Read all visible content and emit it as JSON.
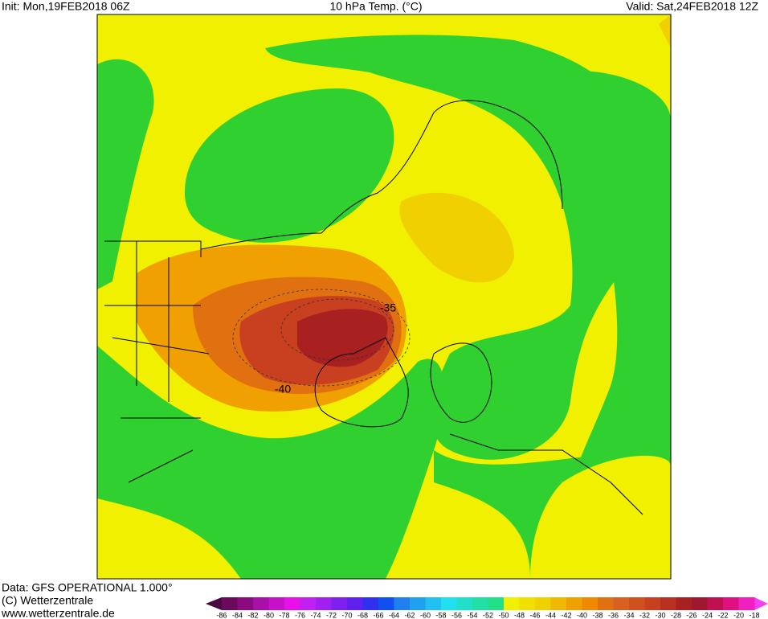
{
  "header": {
    "init": "Init: Mon,19FEB2018 06Z",
    "title": "10 hPa Temp. (°C)",
    "valid": "Valid: Sat,24FEB2018 12Z"
  },
  "footer": {
    "data": "Data: GFS OPERATIONAL 1.000°",
    "copyright": "(C) Wetterzentrale",
    "url": "www.wetterzentrale.de"
  },
  "contour_labels": [
    "-35",
    "-40"
  ],
  "colorbar": {
    "values": [
      -86,
      -84,
      -82,
      -80,
      -78,
      -76,
      -74,
      -72,
      -70,
      -68,
      -66,
      -64,
      -62,
      -60,
      -58,
      -56,
      -54,
      -52,
      -50,
      -48,
      -46,
      -44,
      -42,
      -40,
      -38,
      -36,
      -34,
      -32,
      -30,
      -28,
      -26,
      -24,
      -22,
      -20,
      -18
    ],
    "low_color": "#4a0840",
    "high_color": "#f040f0",
    "colors": [
      "#6a0a5a",
      "#8a0a80",
      "#a810a8",
      "#c810c8",
      "#e810e8",
      "#c020f0",
      "#a020f0",
      "#8020f0",
      "#6020f0",
      "#3030f0",
      "#1050f0",
      "#2080f0",
      "#20a0f0",
      "#20c0f0",
      "#20e0f0",
      "#20e0c8",
      "#20e0a8",
      "#20e088",
      "#f0f000",
      "#f0e000",
      "#f0d000",
      "#f0b800",
      "#f0a000",
      "#f08800",
      "#e07010",
      "#d86020",
      "#d05020",
      "#c84020",
      "#b83020",
      "#a82020",
      "#a01830",
      "#c01050",
      "#e01080",
      "#f020c0"
    ]
  }
}
